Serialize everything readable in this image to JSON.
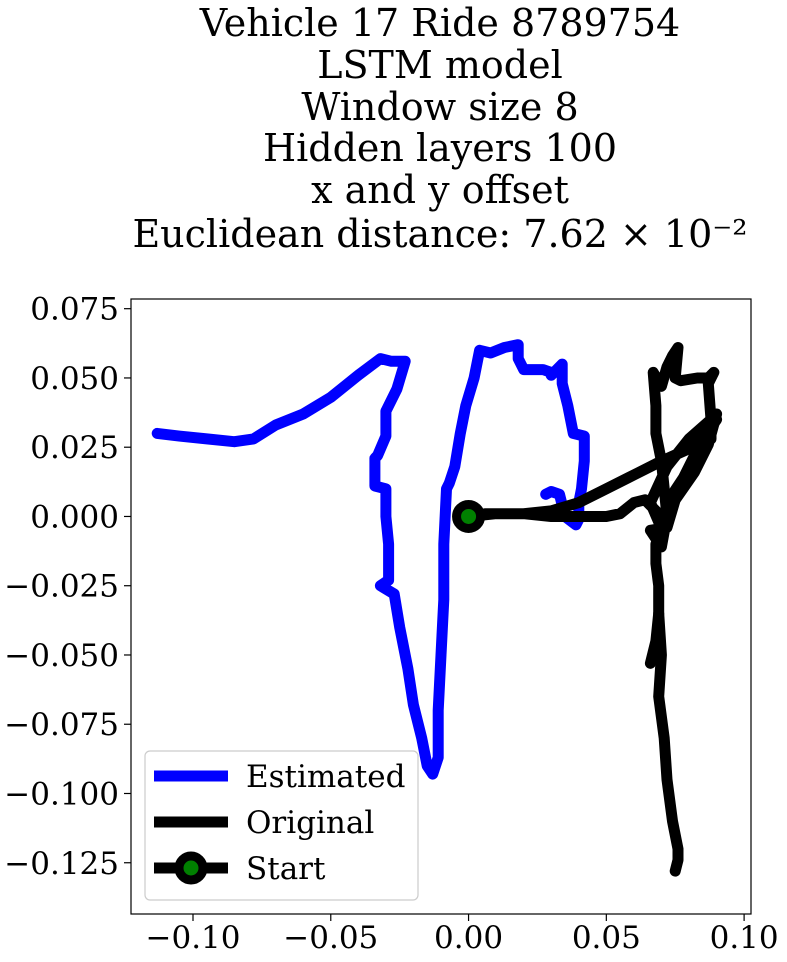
{
  "chart_data": {
    "type": "line",
    "title_lines": [
      "Vehicle 17 Ride 8789754",
      "LSTM model",
      "Window size 8",
      "Hidden layers 100",
      "x and y offset",
      "Euclidean distance: 7.62 × 10⁻²"
    ],
    "xlim": [
      -0.1225,
      0.1025
    ],
    "ylim": [
      -0.1435,
      0.0785
    ],
    "x_ticks": [
      -0.1,
      -0.05,
      0.0,
      0.05,
      0.1
    ],
    "x_tick_labels": [
      "−0.10",
      "−0.05",
      "0.00",
      "0.05",
      "0.10"
    ],
    "y_ticks": [
      0.075,
      0.05,
      0.025,
      0.0,
      -0.025,
      -0.05,
      -0.075,
      -0.1,
      -0.125
    ],
    "y_tick_labels": [
      "0.075",
      "0.050",
      "0.025",
      "0.000",
      "−0.025",
      "−0.050",
      "−0.075",
      "−0.100",
      "−0.125"
    ],
    "grid": false,
    "legend_position": "lower-left",
    "series": [
      {
        "name": "Estimated",
        "color": "#0000ff",
        "points": [
          [
            -0.113,
            0.03
          ],
          [
            -0.105,
            0.029
          ],
          [
            -0.095,
            0.028
          ],
          [
            -0.085,
            0.027
          ],
          [
            -0.078,
            0.028
          ],
          [
            -0.07,
            0.033
          ],
          [
            -0.06,
            0.037
          ],
          [
            -0.05,
            0.043
          ],
          [
            -0.04,
            0.051
          ],
          [
            -0.032,
            0.057
          ],
          [
            -0.028,
            0.056
          ],
          [
            -0.023,
            0.056
          ],
          [
            -0.026,
            0.046
          ],
          [
            -0.03,
            0.038
          ],
          [
            -0.03,
            0.029
          ],
          [
            -0.033,
            0.022
          ],
          [
            -0.034,
            0.021
          ],
          [
            -0.034,
            0.011
          ],
          [
            -0.03,
            0.01
          ],
          [
            -0.03,
            0.0
          ],
          [
            -0.029,
            -0.01
          ],
          [
            -0.029,
            -0.02
          ],
          [
            -0.029,
            -0.023
          ],
          [
            -0.032,
            -0.025
          ],
          [
            -0.027,
            -0.028
          ],
          [
            -0.025,
            -0.04
          ],
          [
            -0.022,
            -0.055
          ],
          [
            -0.02,
            -0.068
          ],
          [
            -0.017,
            -0.08
          ],
          [
            -0.015,
            -0.09
          ],
          [
            -0.013,
            -0.093
          ],
          [
            -0.011,
            -0.087
          ],
          [
            -0.011,
            -0.07
          ],
          [
            -0.01,
            -0.05
          ],
          [
            -0.009,
            -0.03
          ],
          [
            -0.009,
            -0.01
          ],
          [
            -0.008,
            0.01
          ],
          [
            -0.007,
            0.012
          ],
          [
            -0.005,
            0.018
          ],
          [
            -0.003,
            0.03
          ],
          [
            -0.001,
            0.04
          ],
          [
            0.002,
            0.05
          ],
          [
            0.004,
            0.06
          ],
          [
            0.008,
            0.059
          ],
          [
            0.013,
            0.061
          ],
          [
            0.018,
            0.062
          ],
          [
            0.018,
            0.057
          ],
          [
            0.02,
            0.053
          ],
          [
            0.027,
            0.053
          ],
          [
            0.03,
            0.052
          ],
          [
            0.03,
            0.051
          ],
          [
            0.034,
            0.055
          ],
          [
            0.034,
            0.048
          ],
          [
            0.036,
            0.04
          ],
          [
            0.038,
            0.03
          ],
          [
            0.042,
            0.029
          ],
          [
            0.042,
            0.02
          ],
          [
            0.041,
            0.01
          ],
          [
            0.04,
            0.005
          ],
          [
            0.04,
            -0.001
          ],
          [
            0.039,
            -0.003
          ],
          [
            0.035,
            0.0
          ],
          [
            0.033,
            0.008
          ],
          [
            0.03,
            0.009
          ],
          [
            0.028,
            0.008
          ]
        ]
      },
      {
        "name": "Original",
        "color": "#000000",
        "points": [
          [
            0.0,
            0.0
          ],
          [
            0.01,
            0.001
          ],
          [
            0.02,
            0.001
          ],
          [
            0.03,
            0.0
          ],
          [
            0.04,
            0.0
          ],
          [
            0.05,
            0.0
          ],
          [
            0.055,
            0.001
          ],
          [
            0.06,
            0.005
          ],
          [
            0.064,
            0.006
          ],
          [
            0.068,
            0.002
          ],
          [
            0.069,
            -0.002
          ],
          [
            0.066,
            0.005
          ],
          [
            0.072,
            0.018
          ],
          [
            0.08,
            0.028
          ],
          [
            0.088,
            0.035
          ],
          [
            0.09,
            0.037
          ],
          [
            0.087,
            0.026
          ],
          [
            0.082,
            0.016
          ],
          [
            0.075,
            0.006
          ],
          [
            0.072,
            -0.004
          ],
          [
            0.066,
            -0.005
          ],
          [
            0.07,
            -0.011
          ],
          [
            0.072,
            0.0
          ],
          [
            0.07,
            0.02
          ],
          [
            0.068,
            0.03
          ],
          [
            0.068,
            0.04
          ],
          [
            0.067,
            0.052
          ],
          [
            0.07,
            0.047
          ],
          [
            0.072,
            0.054
          ],
          [
            0.074,
            0.058
          ],
          [
            0.076,
            0.061
          ],
          [
            0.075,
            0.05
          ],
          [
            0.077,
            0.049
          ],
          [
            0.083,
            0.05
          ],
          [
            0.087,
            0.05
          ],
          [
            0.089,
            0.052
          ],
          [
            0.087,
            0.048
          ],
          [
            0.088,
            0.035
          ],
          [
            0.088,
            0.028
          ],
          [
            0.07,
            0.02
          ],
          [
            0.058,
            0.014
          ],
          [
            0.05,
            0.01
          ],
          [
            0.04,
            0.005
          ],
          [
            0.03,
            0.002
          ],
          [
            0.02,
            0.001
          ],
          [
            0.01,
            0.001
          ],
          [
            0.006,
            0.001
          ],
          [
            0.004,
            0.0
          ]
        ]
      },
      {
        "name": "Original",
        "color": "#000000",
        "points": [
          [
            0.068,
            -0.01
          ],
          [
            0.068,
            -0.017
          ],
          [
            0.069,
            -0.025
          ],
          [
            0.069,
            -0.035
          ],
          [
            0.07,
            -0.05
          ],
          [
            0.069,
            -0.065
          ],
          [
            0.071,
            -0.08
          ],
          [
            0.072,
            -0.095
          ],
          [
            0.074,
            -0.11
          ],
          [
            0.076,
            -0.12
          ],
          [
            0.076,
            -0.124
          ],
          [
            0.075,
            -0.128
          ]
        ]
      },
      {
        "name": "Original",
        "color": "#000000",
        "points": [
          [
            0.066,
            -0.053
          ],
          [
            0.068,
            -0.045
          ],
          [
            0.069,
            -0.035
          ]
        ]
      },
      {
        "name": "Original",
        "color": "#000000",
        "points": [
          [
            0.09,
            0.035
          ],
          [
            0.085,
            0.028
          ],
          [
            0.078,
            0.014
          ],
          [
            0.072,
            0.005
          ],
          [
            0.07,
            -0.008
          ]
        ]
      }
    ],
    "start_point": {
      "name": "Start",
      "x": 0.0,
      "y": 0.0,
      "ring_color": "#000000",
      "fill_color": "#008000"
    },
    "legend": [
      {
        "label": "Estimated",
        "color": "#0000ff",
        "marker": "line"
      },
      {
        "label": "Original",
        "color": "#000000",
        "marker": "line"
      },
      {
        "label": "Start",
        "color": "#000000",
        "marker": "start"
      }
    ]
  }
}
